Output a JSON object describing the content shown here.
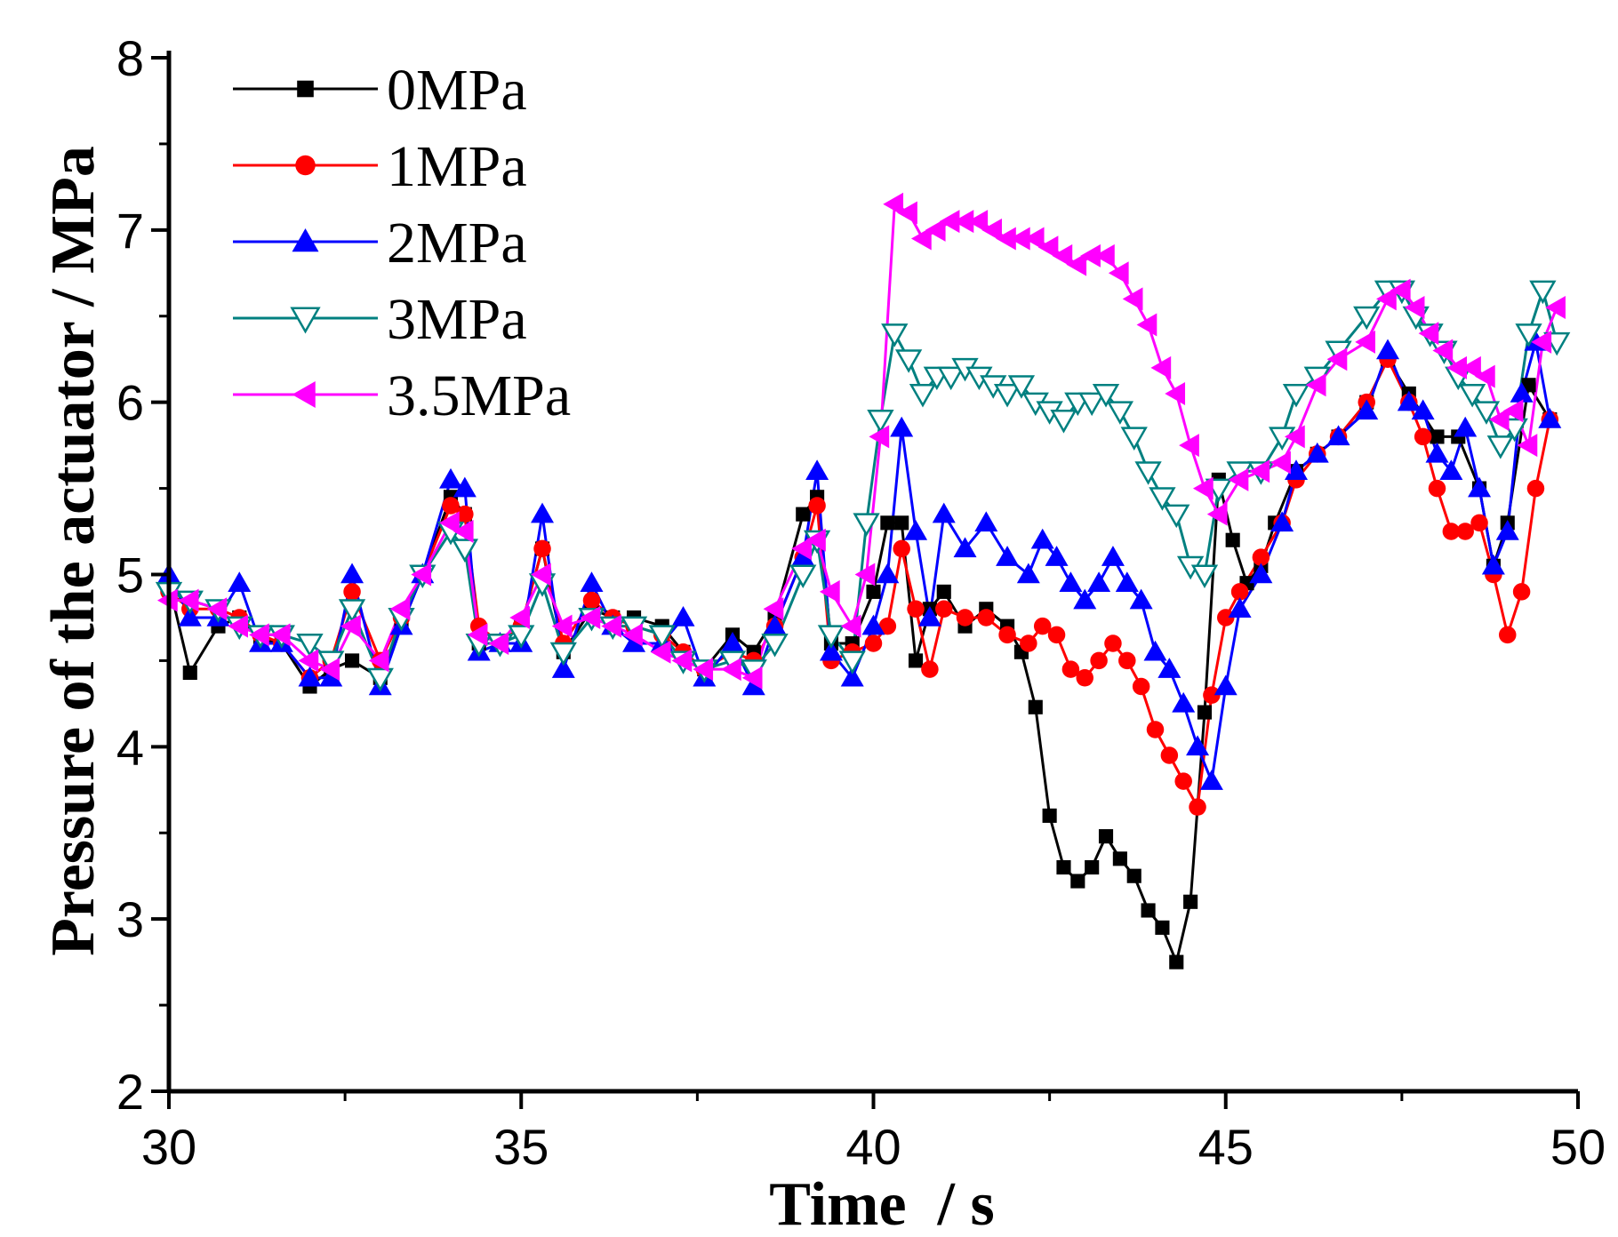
{
  "chart_data": {
    "type": "line",
    "xlabel": "Time  / s",
    "ylabel": "Pressure of the actuator / MPa",
    "xlim": [
      30,
      50
    ],
    "ylim": [
      2,
      8
    ],
    "xticks": [
      "30",
      "35",
      "40",
      "45",
      "50"
    ],
    "yticks": [
      "2",
      "3",
      "4",
      "5",
      "6",
      "7",
      "8"
    ],
    "grid": false,
    "legend_position": "top-left",
    "series": [
      {
        "name": "0MPa",
        "color": "#000000",
        "marker": "square",
        "x": [
          30,
          30.3,
          30.7,
          31.0,
          31.3,
          31.6,
          32.0,
          32.3,
          32.6,
          33.0,
          33.3,
          33.6,
          34.0,
          34.2,
          34.4,
          34.7,
          35.0,
          35.3,
          35.6,
          36.0,
          36.3,
          36.6,
          37.0,
          37.3,
          37.6,
          38.0,
          38.3,
          38.6,
          39.0,
          39.2,
          39.4,
          39.7,
          40.0,
          40.2,
          40.4,
          40.6,
          40.8,
          41.0,
          41.3,
          41.6,
          41.9,
          42.1,
          42.3,
          42.5,
          42.7,
          42.9,
          43.1,
          43.3,
          43.5,
          43.7,
          43.9,
          44.1,
          44.3,
          44.5,
          44.7,
          44.9,
          45.1,
          45.3,
          45.5,
          45.7,
          46.0,
          46.3,
          46.6,
          47.0,
          47.3,
          47.6,
          48.0,
          48.3,
          48.6,
          48.8,
          49.0,
          49.3,
          49.6
        ],
        "y": [
          4.95,
          4.43,
          4.7,
          4.75,
          4.62,
          4.6,
          4.35,
          4.45,
          4.5,
          4.4,
          4.7,
          5.0,
          5.45,
          5.35,
          4.6,
          4.6,
          4.7,
          5.15,
          4.55,
          4.8,
          4.75,
          4.75,
          4.7,
          4.55,
          4.45,
          4.65,
          4.55,
          4.75,
          5.35,
          5.45,
          4.6,
          4.6,
          4.9,
          5.3,
          5.3,
          4.5,
          4.8,
          4.9,
          4.7,
          4.8,
          4.7,
          4.55,
          4.23,
          3.6,
          3.3,
          3.22,
          3.3,
          3.48,
          3.35,
          3.25,
          3.05,
          2.95,
          2.75,
          3.1,
          4.2,
          5.55,
          5.2,
          4.95,
          5.05,
          5.3,
          5.6,
          5.7,
          5.8,
          6.0,
          6.25,
          6.05,
          5.8,
          5.8,
          5.5,
          5.05,
          5.3,
          6.1,
          5.9
        ]
      },
      {
        "name": "1MPa",
        "color": "#ff0000",
        "marker": "circle",
        "x": [
          30,
          30.3,
          30.7,
          31.0,
          31.3,
          31.6,
          32.0,
          32.3,
          32.6,
          33.0,
          33.3,
          33.6,
          34.0,
          34.2,
          34.4,
          34.7,
          35.0,
          35.3,
          35.6,
          36.0,
          36.3,
          36.6,
          37.0,
          37.3,
          37.6,
          38.0,
          38.3,
          38.6,
          39.0,
          39.2,
          39.4,
          39.7,
          40.0,
          40.2,
          40.4,
          40.6,
          40.8,
          41.0,
          41.3,
          41.6,
          41.9,
          42.2,
          42.4,
          42.6,
          42.8,
          43.0,
          43.2,
          43.4,
          43.6,
          43.8,
          44.0,
          44.2,
          44.4,
          44.6,
          44.8,
          45.0,
          45.2,
          45.5,
          45.8,
          46.0,
          46.3,
          46.6,
          47.0,
          47.3,
          47.6,
          47.8,
          48.0,
          48.2,
          48.4,
          48.6,
          48.8,
          49.0,
          49.2,
          49.4,
          49.6
        ],
        "y": [
          4.9,
          4.8,
          4.8,
          4.75,
          4.65,
          4.6,
          4.4,
          4.5,
          4.9,
          4.5,
          4.75,
          5.0,
          5.4,
          5.35,
          4.7,
          4.6,
          4.7,
          5.15,
          4.6,
          4.85,
          4.75,
          4.7,
          4.65,
          4.55,
          4.45,
          4.55,
          4.5,
          4.7,
          5.1,
          5.4,
          4.5,
          4.55,
          4.6,
          4.7,
          5.15,
          4.8,
          4.45,
          4.8,
          4.75,
          4.75,
          4.65,
          4.6,
          4.7,
          4.65,
          4.45,
          4.4,
          4.5,
          4.6,
          4.5,
          4.35,
          4.1,
          3.95,
          3.8,
          3.65,
          4.3,
          4.75,
          4.9,
          5.1,
          5.3,
          5.55,
          5.7,
          5.8,
          6.0,
          6.25,
          6.0,
          5.8,
          5.5,
          5.25,
          5.25,
          5.3,
          5.0,
          4.65,
          4.9,
          5.5,
          5.9
        ]
      },
      {
        "name": "2MPa",
        "color": "#0000ff",
        "marker": "triangle-up",
        "x": [
          30,
          30.3,
          30.7,
          31.0,
          31.3,
          31.6,
          32.0,
          32.3,
          32.6,
          33.0,
          33.3,
          33.6,
          34.0,
          34.2,
          34.4,
          34.7,
          35.0,
          35.3,
          35.6,
          36.0,
          36.3,
          36.6,
          37.0,
          37.3,
          37.6,
          38.0,
          38.3,
          38.6,
          39.0,
          39.2,
          39.4,
          39.7,
          40.0,
          40.2,
          40.4,
          40.6,
          40.8,
          41.0,
          41.3,
          41.6,
          41.9,
          42.2,
          42.4,
          42.6,
          42.8,
          43.0,
          43.2,
          43.4,
          43.6,
          43.8,
          44.0,
          44.2,
          44.4,
          44.6,
          44.8,
          45.0,
          45.2,
          45.5,
          45.8,
          46.0,
          46.3,
          46.6,
          47.0,
          47.3,
          47.6,
          47.8,
          48.0,
          48.2,
          48.4,
          48.6,
          48.8,
          49.0,
          49.2,
          49.4,
          49.6
        ],
        "y": [
          5.0,
          4.75,
          4.75,
          4.95,
          4.6,
          4.6,
          4.4,
          4.4,
          5.0,
          4.35,
          4.7,
          5.0,
          5.55,
          5.5,
          4.55,
          4.6,
          4.6,
          5.35,
          4.45,
          4.95,
          4.7,
          4.6,
          4.6,
          4.75,
          4.4,
          4.6,
          4.35,
          4.7,
          5.1,
          5.6,
          4.55,
          4.4,
          4.7,
          5.0,
          5.85,
          5.25,
          4.75,
          5.35,
          5.15,
          5.3,
          5.1,
          5.0,
          5.2,
          5.1,
          4.95,
          4.85,
          4.95,
          5.1,
          4.95,
          4.85,
          4.55,
          4.45,
          4.25,
          4.0,
          3.8,
          4.35,
          4.8,
          5.0,
          5.3,
          5.6,
          5.7,
          5.8,
          5.95,
          6.3,
          6.0,
          5.95,
          5.7,
          5.6,
          5.85,
          5.5,
          5.05,
          5.25,
          6.05,
          6.35,
          5.9
        ]
      },
      {
        "name": "3MPa",
        "color": "#008080",
        "marker": "triangle-down-open",
        "x": [
          30,
          30.3,
          30.7,
          31.0,
          31.3,
          31.6,
          32.0,
          32.3,
          32.6,
          33.0,
          33.3,
          33.6,
          34.0,
          34.2,
          34.4,
          34.7,
          35.0,
          35.3,
          35.6,
          36.0,
          36.3,
          36.6,
          37.0,
          37.3,
          37.6,
          38.0,
          38.3,
          38.6,
          39.0,
          39.2,
          39.4,
          39.7,
          39.9,
          40.1,
          40.3,
          40.5,
          40.7,
          40.9,
          41.1,
          41.3,
          41.5,
          41.7,
          41.9,
          42.1,
          42.3,
          42.5,
          42.7,
          42.9,
          43.1,
          43.3,
          43.5,
          43.7,
          43.9,
          44.1,
          44.3,
          44.5,
          44.7,
          44.9,
          45.2,
          45.5,
          45.8,
          46.0,
          46.3,
          46.6,
          47.0,
          47.3,
          47.5,
          47.7,
          47.9,
          48.1,
          48.3,
          48.5,
          48.7,
          48.9,
          49.1,
          49.3,
          49.5,
          49.7
        ],
        "y": [
          4.9,
          4.85,
          4.8,
          4.7,
          4.65,
          4.65,
          4.6,
          4.5,
          4.8,
          4.4,
          4.75,
          5.0,
          5.25,
          5.15,
          4.6,
          4.6,
          4.65,
          4.95,
          4.55,
          4.75,
          4.7,
          4.7,
          4.65,
          4.5,
          4.45,
          4.5,
          4.45,
          4.6,
          5.0,
          5.2,
          4.65,
          4.5,
          5.3,
          5.9,
          6.4,
          6.25,
          6.05,
          6.15,
          6.15,
          6.2,
          6.15,
          6.1,
          6.05,
          6.1,
          6.0,
          5.95,
          5.9,
          6.0,
          6.0,
          6.05,
          5.95,
          5.8,
          5.6,
          5.45,
          5.35,
          5.05,
          5.0,
          5.5,
          5.6,
          5.6,
          5.8,
          6.05,
          6.15,
          6.3,
          6.5,
          6.65,
          6.65,
          6.5,
          6.4,
          6.3,
          6.15,
          6.05,
          5.95,
          5.75,
          5.85,
          6.4,
          6.65,
          6.35
        ]
      },
      {
        "name": "3.5MPa",
        "color": "#ff00ff",
        "marker": "triangle-left",
        "x": [
          30,
          30.3,
          30.7,
          31.0,
          31.3,
          31.6,
          32.0,
          32.3,
          32.6,
          33.0,
          33.3,
          33.6,
          34.0,
          34.2,
          34.4,
          34.7,
          35.0,
          35.3,
          35.6,
          36.0,
          36.3,
          36.6,
          37.0,
          37.3,
          37.6,
          38.0,
          38.3,
          38.6,
          39.0,
          39.2,
          39.4,
          39.7,
          39.9,
          40.1,
          40.3,
          40.5,
          40.7,
          40.9,
          41.1,
          41.3,
          41.5,
          41.7,
          41.9,
          42.1,
          42.3,
          42.5,
          42.7,
          42.9,
          43.1,
          43.3,
          43.5,
          43.7,
          43.9,
          44.1,
          44.3,
          44.5,
          44.7,
          44.9,
          45.2,
          45.5,
          45.8,
          46.0,
          46.3,
          46.6,
          47.0,
          47.3,
          47.5,
          47.7,
          47.9,
          48.1,
          48.3,
          48.5,
          48.7,
          48.9,
          49.1,
          49.3,
          49.5,
          49.7
        ],
        "y": [
          4.85,
          4.85,
          4.8,
          4.7,
          4.65,
          4.65,
          4.5,
          4.45,
          4.7,
          4.5,
          4.8,
          5.0,
          5.3,
          5.25,
          4.65,
          4.6,
          4.75,
          5.0,
          4.7,
          4.75,
          4.7,
          4.65,
          4.55,
          4.5,
          4.45,
          4.45,
          4.4,
          4.8,
          5.15,
          5.2,
          4.9,
          4.7,
          5.0,
          5.8,
          7.15,
          7.1,
          6.95,
          7.0,
          7.05,
          7.05,
          7.05,
          7.0,
          6.95,
          6.95,
          6.95,
          6.9,
          6.85,
          6.8,
          6.85,
          6.85,
          6.75,
          6.6,
          6.45,
          6.2,
          6.05,
          5.75,
          5.5,
          5.35,
          5.55,
          5.6,
          5.65,
          5.8,
          6.1,
          6.25,
          6.35,
          6.6,
          6.65,
          6.55,
          6.4,
          6.3,
          6.2,
          6.2,
          6.15,
          5.9,
          5.95,
          5.75,
          6.35,
          6.55
        ]
      }
    ]
  }
}
